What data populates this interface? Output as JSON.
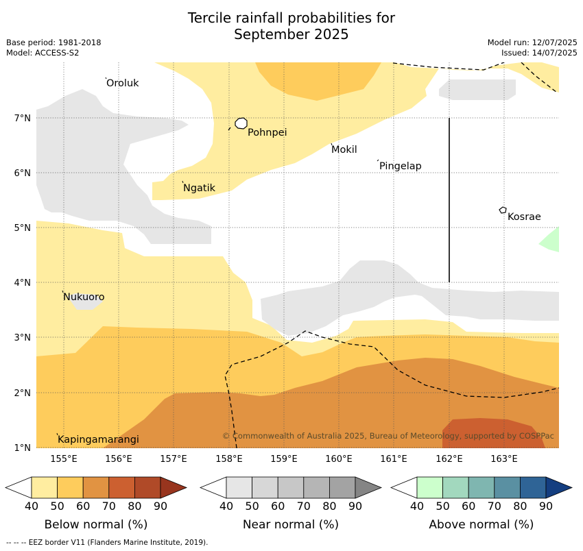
{
  "title_line1": "Tercile rainfall probabilities for",
  "title_line2": "September 2025",
  "base_period": "Base period: 1981-2018",
  "model": "Model: ACCESS-S2",
  "model_run": "Model run: 12/07/2025",
  "issued": "Issued: 14/07/2025",
  "copyright": "© Commonwealth of Australia 2025, Bureau of Meteorology, supported by COSPPac",
  "footer": "--  --  -- EEZ border V11 (Flanders Marine Institute, 2019).",
  "x_ticks": [
    "155°E",
    "156°E",
    "157°E",
    "158°E",
    "159°E",
    "160°E",
    "161°E",
    "162°E",
    "163°E"
  ],
  "y_ticks": [
    "1°N",
    "2°N",
    "3°N",
    "4°N",
    "5°N",
    "6°N",
    "7°N"
  ],
  "places": {
    "oroluk": "Oroluk",
    "pohnpei": "Pohnpei",
    "mokil": "Mokil",
    "pingelap": "Pingelap",
    "ngatik": "Ngatik",
    "kosrae": "Kosrae",
    "nukuoro": "Nukuoro",
    "kapingamarangi": "Kapingamarangi"
  },
  "colorbars": [
    {
      "title": "Below normal (%)",
      "ticks": [
        "40",
        "50",
        "60",
        "70",
        "80",
        "90"
      ],
      "colors": [
        "#ffeda0",
        "#fecc5c",
        "#e19342",
        "#cc6030",
        "#b04a28",
        "#98351e"
      ]
    },
    {
      "title": "Near normal (%)",
      "ticks": [
        "40",
        "50",
        "60",
        "70",
        "80",
        "90"
      ],
      "colors": [
        "#e6e6e6",
        "#d7d7d7",
        "#c7c7c7",
        "#b5b5b5",
        "#a3a3a3",
        "#858585"
      ]
    },
    {
      "title": "Above normal (%)",
      "ticks": [
        "40",
        "50",
        "60",
        "70",
        "80",
        "90"
      ],
      "colors": [
        "#ccffcc",
        "#a2d8be",
        "#7fb6b0",
        "#5a90a2",
        "#2f6496",
        "#143e80"
      ]
    }
  ]
}
